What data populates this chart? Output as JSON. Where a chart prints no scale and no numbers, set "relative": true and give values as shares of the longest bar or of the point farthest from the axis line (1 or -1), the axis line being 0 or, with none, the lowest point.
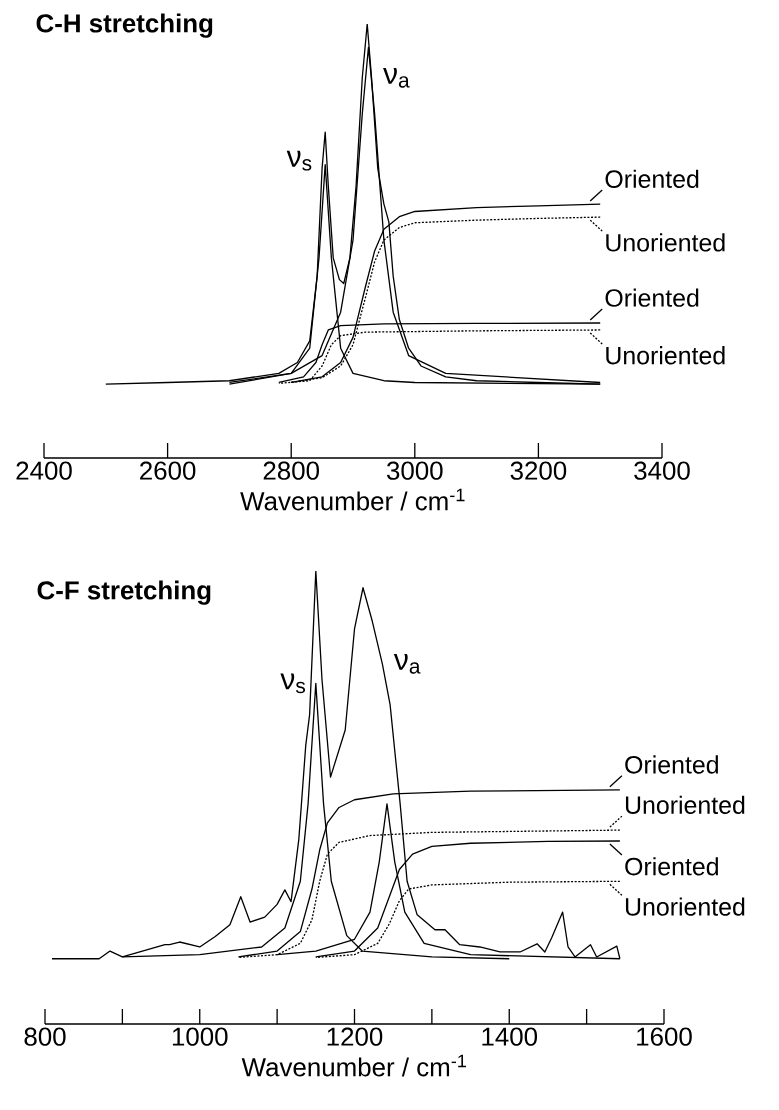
{
  "chart_data": [
    {
      "type": "line",
      "title": "C-H stretching",
      "xlabel": "Wavenumber / cm$^{-1}$",
      "relative": true,
      "marker": "none",
      "legend": "right",
      "xlim": [
        2400,
        3400
      ],
      "xticks": [
        2400,
        2600,
        2800,
        3000,
        3200,
        3400
      ],
      "annotations": [
        {
          "text": "ν$_{s}$",
          "x": 2850,
          "y": 0.685
        },
        {
          "text": "ν$_{a}$",
          "x": 2930,
          "y": 0.876
        }
      ],
      "series": [
        {
          "color": "#000000",
          "line_style": "solid",
          "x": [
            2500,
            2600,
            2700,
            2780,
            2810,
            2830,
            2842,
            2850,
            2855,
            2860,
            2868,
            2878,
            2885,
            2895,
            2905,
            2915,
            2923,
            2930,
            2940,
            2950,
            2958,
            2965,
            2975,
            2990,
            3010,
            3050,
            3100,
            3200,
            3300
          ],
          "values": [
            0.17,
            0.174,
            0.178,
            0.195,
            0.22,
            0.27,
            0.419,
            0.668,
            0.751,
            0.627,
            0.461,
            0.411,
            0.402,
            0.461,
            0.627,
            0.876,
            1.0,
            0.876,
            0.668,
            0.585,
            0.544,
            0.419,
            0.319,
            0.253,
            0.212,
            0.187,
            0.178,
            0.174,
            0.17
          ]
        },
        {
          "color": "#000000",
          "line_style": "solid",
          "x": [
            2700,
            2800,
            2830,
            2845,
            2855,
            2865,
            2880,
            2900,
            2950,
            3000,
            3300
          ],
          "values": [
            0.17,
            0.195,
            0.253,
            0.461,
            0.676,
            0.461,
            0.253,
            0.195,
            0.178,
            0.174,
            0.17
          ]
        },
        {
          "color": "#000000",
          "line_style": "solid",
          "x": [
            2700,
            2800,
            2850,
            2880,
            2900,
            2915,
            2925,
            2935,
            2950,
            2965,
            2990,
            3050,
            3300
          ],
          "values": [
            0.174,
            0.195,
            0.236,
            0.336,
            0.502,
            0.793,
            0.946,
            0.793,
            0.502,
            0.336,
            0.236,
            0.195,
            0.174
          ]
        },
        {
          "name": "Oriented",
          "color": "#000000",
          "line_style": "solid",
          "x": [
            2800,
            2850,
            2880,
            2900,
            2920,
            2935,
            2950,
            2975,
            3000,
            3100,
            3200,
            3300
          ],
          "values": [
            0.174,
            0.187,
            0.22,
            0.278,
            0.394,
            0.477,
            0.527,
            0.556,
            0.568,
            0.577,
            0.581,
            0.585
          ]
        },
        {
          "name": "Unoriented",
          "color": "#000000",
          "line_style": "dotted",
          "x": [
            2800,
            2850,
            2880,
            2900,
            2920,
            2935,
            2950,
            2975,
            3000,
            3100,
            3200,
            3300
          ],
          "values": [
            0.174,
            0.185,
            0.212,
            0.261,
            0.369,
            0.452,
            0.502,
            0.531,
            0.542,
            0.548,
            0.552,
            0.555
          ]
        },
        {
          "name": "Oriented",
          "color": "#000000",
          "line_style": "solid",
          "x": [
            2780,
            2820,
            2840,
            2850,
            2860,
            2880,
            2950,
            3100,
            3300
          ],
          "values": [
            0.174,
            0.187,
            0.22,
            0.261,
            0.295,
            0.305,
            0.309,
            0.31,
            0.311
          ]
        },
        {
          "name": "Unoriented",
          "color": "#000000",
          "line_style": "dotted",
          "x": [
            2780,
            2830,
            2850,
            2865,
            2880,
            2920,
            3100,
            3300
          ],
          "values": [
            0.172,
            0.178,
            0.212,
            0.261,
            0.282,
            0.29,
            0.293,
            0.295
          ]
        }
      ]
    },
    {
      "type": "line",
      "title": "C-F stretching",
      "xlabel": "Wavenumber / cm$^{-1}$",
      "relative": true,
      "marker": "none",
      "legend": "right",
      "xlim": [
        800,
        1600
      ],
      "xticks": [
        800,
        {
          "value": 900,
          "label": null
        },
        1000,
        {
          "value": 1100,
          "label": null
        },
        1200,
        {
          "value": 1300,
          "label": null
        },
        1400,
        {
          "value": 1500,
          "label": null
        },
        1600
      ],
      "annotations": [
        {
          "text": "ν$_{s}$",
          "x": 1150,
          "y": 0.752
        },
        {
          "text": "ν$_{a}$",
          "x": 1236,
          "y": 0.795
        }
      ],
      "series": [
        {
          "color": "#000000",
          "line_style": "solid",
          "x": [
            809,
            870,
            884,
            900,
            955,
            961,
            974,
            1000,
            1020,
            1039,
            1053,
            1065,
            1084,
            1100,
            1110,
            1118,
            1128,
            1137,
            1142,
            1150,
            1158,
            1169,
            1188,
            1200,
            1211,
            1223,
            1236,
            1246,
            1259,
            1268,
            1281,
            1304,
            1317,
            1336,
            1362,
            1388,
            1414,
            1436,
            1446,
            1455,
            1469,
            1476,
            1485,
            1505,
            1513,
            1539,
            1543
          ],
          "values": [
            0.144,
            0.144,
            0.161,
            0.148,
            0.175,
            0.175,
            0.181,
            0.17,
            0.193,
            0.219,
            0.281,
            0.225,
            0.236,
            0.264,
            0.296,
            0.27,
            0.407,
            0.615,
            0.683,
            1.0,
            0.76,
            0.545,
            0.649,
            0.872,
            0.963,
            0.889,
            0.795,
            0.705,
            0.486,
            0.315,
            0.241,
            0.208,
            0.208,
            0.175,
            0.17,
            0.159,
            0.159,
            0.177,
            0.159,
            0.191,
            0.247,
            0.17,
            0.148,
            0.175,
            0.148,
            0.172,
            0.144
          ]
        },
        {
          "color": "#000000",
          "line_style": "solid",
          "x": [
            900,
            1000,
            1080,
            1110,
            1130,
            1140,
            1150,
            1160,
            1170,
            1190,
            1210,
            1300,
            1400
          ],
          "values": [
            0.148,
            0.153,
            0.17,
            0.212,
            0.315,
            0.486,
            0.752,
            0.486,
            0.315,
            0.195,
            0.161,
            0.148,
            0.144
          ]
        },
        {
          "color": "#000000",
          "line_style": "solid",
          "x": [
            1100,
            1150,
            1200,
            1220,
            1232,
            1242,
            1252,
            1265,
            1290,
            1350,
            1543
          ],
          "values": [
            0.153,
            0.161,
            0.187,
            0.247,
            0.358,
            0.486,
            0.358,
            0.247,
            0.178,
            0.153,
            0.144
          ]
        },
        {
          "name": "Oriented",
          "color": "#000000",
          "line_style": "solid",
          "x": [
            1050,
            1100,
            1130,
            1145,
            1155,
            1165,
            1180,
            1200,
            1250,
            1350,
            1543
          ],
          "values": [
            0.148,
            0.161,
            0.204,
            0.298,
            0.384,
            0.444,
            0.478,
            0.495,
            0.508,
            0.514,
            0.517
          ]
        },
        {
          "name": "Unoriented",
          "color": "#000000",
          "line_style": "dotted",
          "x": [
            1050,
            1100,
            1130,
            1145,
            1155,
            1165,
            1180,
            1220,
            1300,
            1543
          ],
          "values": [
            0.147,
            0.153,
            0.178,
            0.23,
            0.315,
            0.375,
            0.401,
            0.416,
            0.423,
            0.428
          ]
        },
        {
          "name": "Oriented",
          "color": "#000000",
          "line_style": "solid",
          "x": [
            1150,
            1200,
            1230,
            1245,
            1258,
            1275,
            1300,
            1350,
            1450,
            1543
          ],
          "values": [
            0.148,
            0.161,
            0.212,
            0.281,
            0.341,
            0.375,
            0.392,
            0.399,
            0.403,
            0.404
          ]
        },
        {
          "name": "Unoriented",
          "color": "#000000",
          "line_style": "dotted",
          "x": [
            1150,
            1200,
            1230,
            1245,
            1258,
            1270,
            1300,
            1400,
            1543
          ],
          "values": [
            0.147,
            0.153,
            0.178,
            0.221,
            0.272,
            0.298,
            0.307,
            0.313,
            0.315
          ]
        }
      ]
    }
  ]
}
